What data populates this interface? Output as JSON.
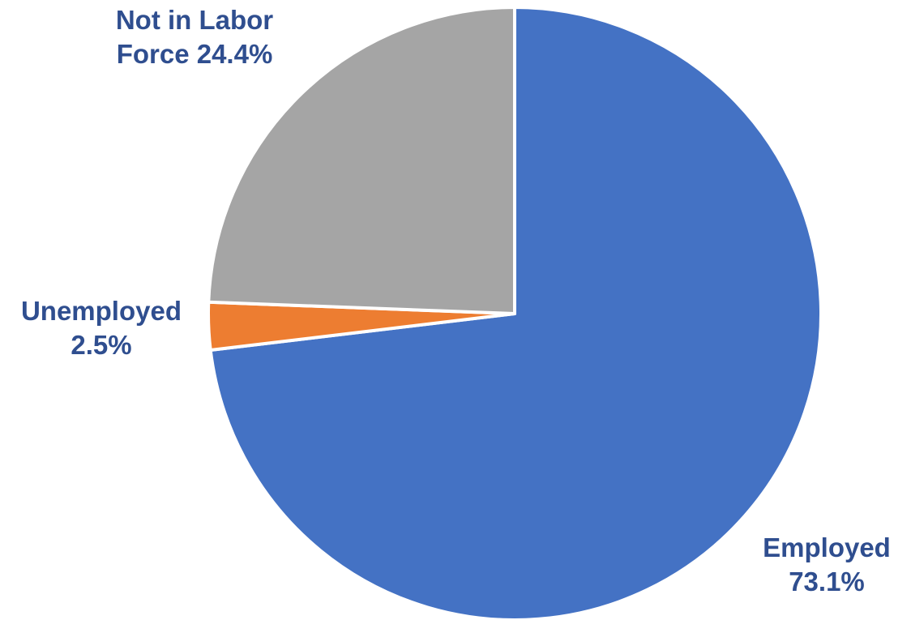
{
  "chart_data": {
    "type": "pie",
    "title": "",
    "start_angle_deg": 0,
    "direction": "clockwise",
    "slices": [
      {
        "key": "employed",
        "label_line1": "Employed",
        "label_line2": "73.1%",
        "name": "Employed",
        "value": 73.1,
        "color": "#4472C4"
      },
      {
        "key": "unemployed",
        "label_line1": "Unemployed",
        "label_line2": "2.5%",
        "name": "Unemployed",
        "value": 2.5,
        "color": "#ED7D31"
      },
      {
        "key": "not_in_labor",
        "label_line1": "Not in Labor",
        "label_line2": "Force 24.4%",
        "name": "Not in Labor Force",
        "value": 24.4,
        "color": "#A5A5A5"
      }
    ],
    "label_color": "#2F4E8F",
    "slice_border_color": "#FFFFFF"
  }
}
